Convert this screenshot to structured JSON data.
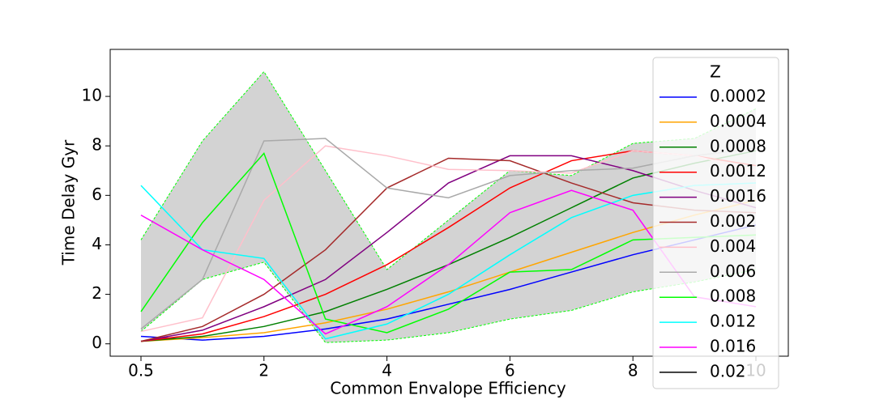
{
  "chart_data": {
    "type": "line",
    "xlabel": "Common Envalope Efficiency",
    "ylabel": "Time Delay Gyr",
    "categories": [
      "0.5",
      null,
      "2",
      null,
      "4",
      null,
      "6",
      null,
      "8",
      null,
      "10"
    ],
    "ylim": [
      -0.5,
      11.9
    ],
    "yticks": [
      0,
      2,
      4,
      6,
      8,
      10
    ],
    "band": {
      "upper": [
        4.2,
        8.2,
        11.0,
        7.0,
        3.0,
        5.0,
        7.0,
        6.8,
        8.1,
        8.3,
        9.5
      ],
      "lower": [
        0.5,
        2.6,
        3.3,
        0.05,
        0.15,
        0.45,
        1.0,
        1.35,
        2.1,
        2.5,
        3.0
      ],
      "color": "#d3d3d3",
      "edge_color": "#00ff00"
    },
    "legend": {
      "title": "Z",
      "loc": "right"
    },
    "series": [
      {
        "name": "0.0002",
        "color": "#0000ff",
        "values": [
          0.3,
          0.15,
          0.3,
          0.6,
          1.0,
          1.6,
          2.2,
          2.9,
          3.6,
          4.2,
          4.8
        ]
      },
      {
        "name": "0.0004",
        "color": "#ffa500",
        "values": [
          0.1,
          0.25,
          0.45,
          0.85,
          1.4,
          2.1,
          2.9,
          3.7,
          4.5,
          5.2,
          5.8
        ]
      },
      {
        "name": "0.0008",
        "color": "#008000",
        "values": [
          0.1,
          0.3,
          0.7,
          1.3,
          2.2,
          3.2,
          4.3,
          5.5,
          6.7,
          7.3,
          7.8
        ]
      },
      {
        "name": "0.0012",
        "color": "#ff0000",
        "values": [
          0.1,
          0.4,
          1.1,
          2.0,
          3.2,
          4.7,
          6.3,
          7.4,
          7.8,
          7.6,
          7.2
        ]
      },
      {
        "name": "0.0016",
        "color": "#800080",
        "values": [
          0.1,
          0.55,
          1.5,
          2.6,
          4.5,
          6.5,
          7.6,
          7.6,
          7.0,
          6.2,
          5.5
        ]
      },
      {
        "name": "0.002",
        "color": "#a52a2a",
        "values": [
          0.1,
          0.7,
          2.0,
          3.8,
          6.3,
          7.5,
          7.4,
          6.5,
          5.7,
          5.4,
          5.3
        ]
      },
      {
        "name": "0.004",
        "color": "#ffc0cb",
        "values": [
          0.5,
          1.05,
          5.8,
          8.0,
          7.6,
          7.05,
          7.0,
          6.9,
          7.8,
          7.6,
          7.0
        ]
      },
      {
        "name": "0.006",
        "color": "#a9a9a9",
        "values": [
          0.6,
          2.6,
          8.2,
          8.3,
          6.3,
          5.9,
          6.8,
          7.0,
          7.1,
          7.6,
          7.9
        ]
      },
      {
        "name": "0.008",
        "color": "#00ff00",
        "values": [
          1.3,
          4.9,
          7.7,
          1.0,
          0.45,
          1.4,
          2.9,
          3.0,
          4.2,
          4.3,
          4.4
        ]
      },
      {
        "name": "0.012",
        "color": "#00ffff",
        "values": [
          6.4,
          3.8,
          3.45,
          0.2,
          0.8,
          2.0,
          3.6,
          5.1,
          6.0,
          6.4,
          6.5
        ]
      },
      {
        "name": "0.016",
        "color": "#ff00ff",
        "values": [
          5.2,
          3.8,
          2.6,
          0.4,
          1.5,
          3.2,
          5.3,
          6.2,
          5.4,
          1.9,
          1.5
        ]
      },
      {
        "name": "0.02",
        "color": "#000000",
        "values": [
          null,
          null,
          null,
          null,
          null,
          null,
          null,
          null,
          null,
          null,
          null
        ]
      }
    ]
  }
}
